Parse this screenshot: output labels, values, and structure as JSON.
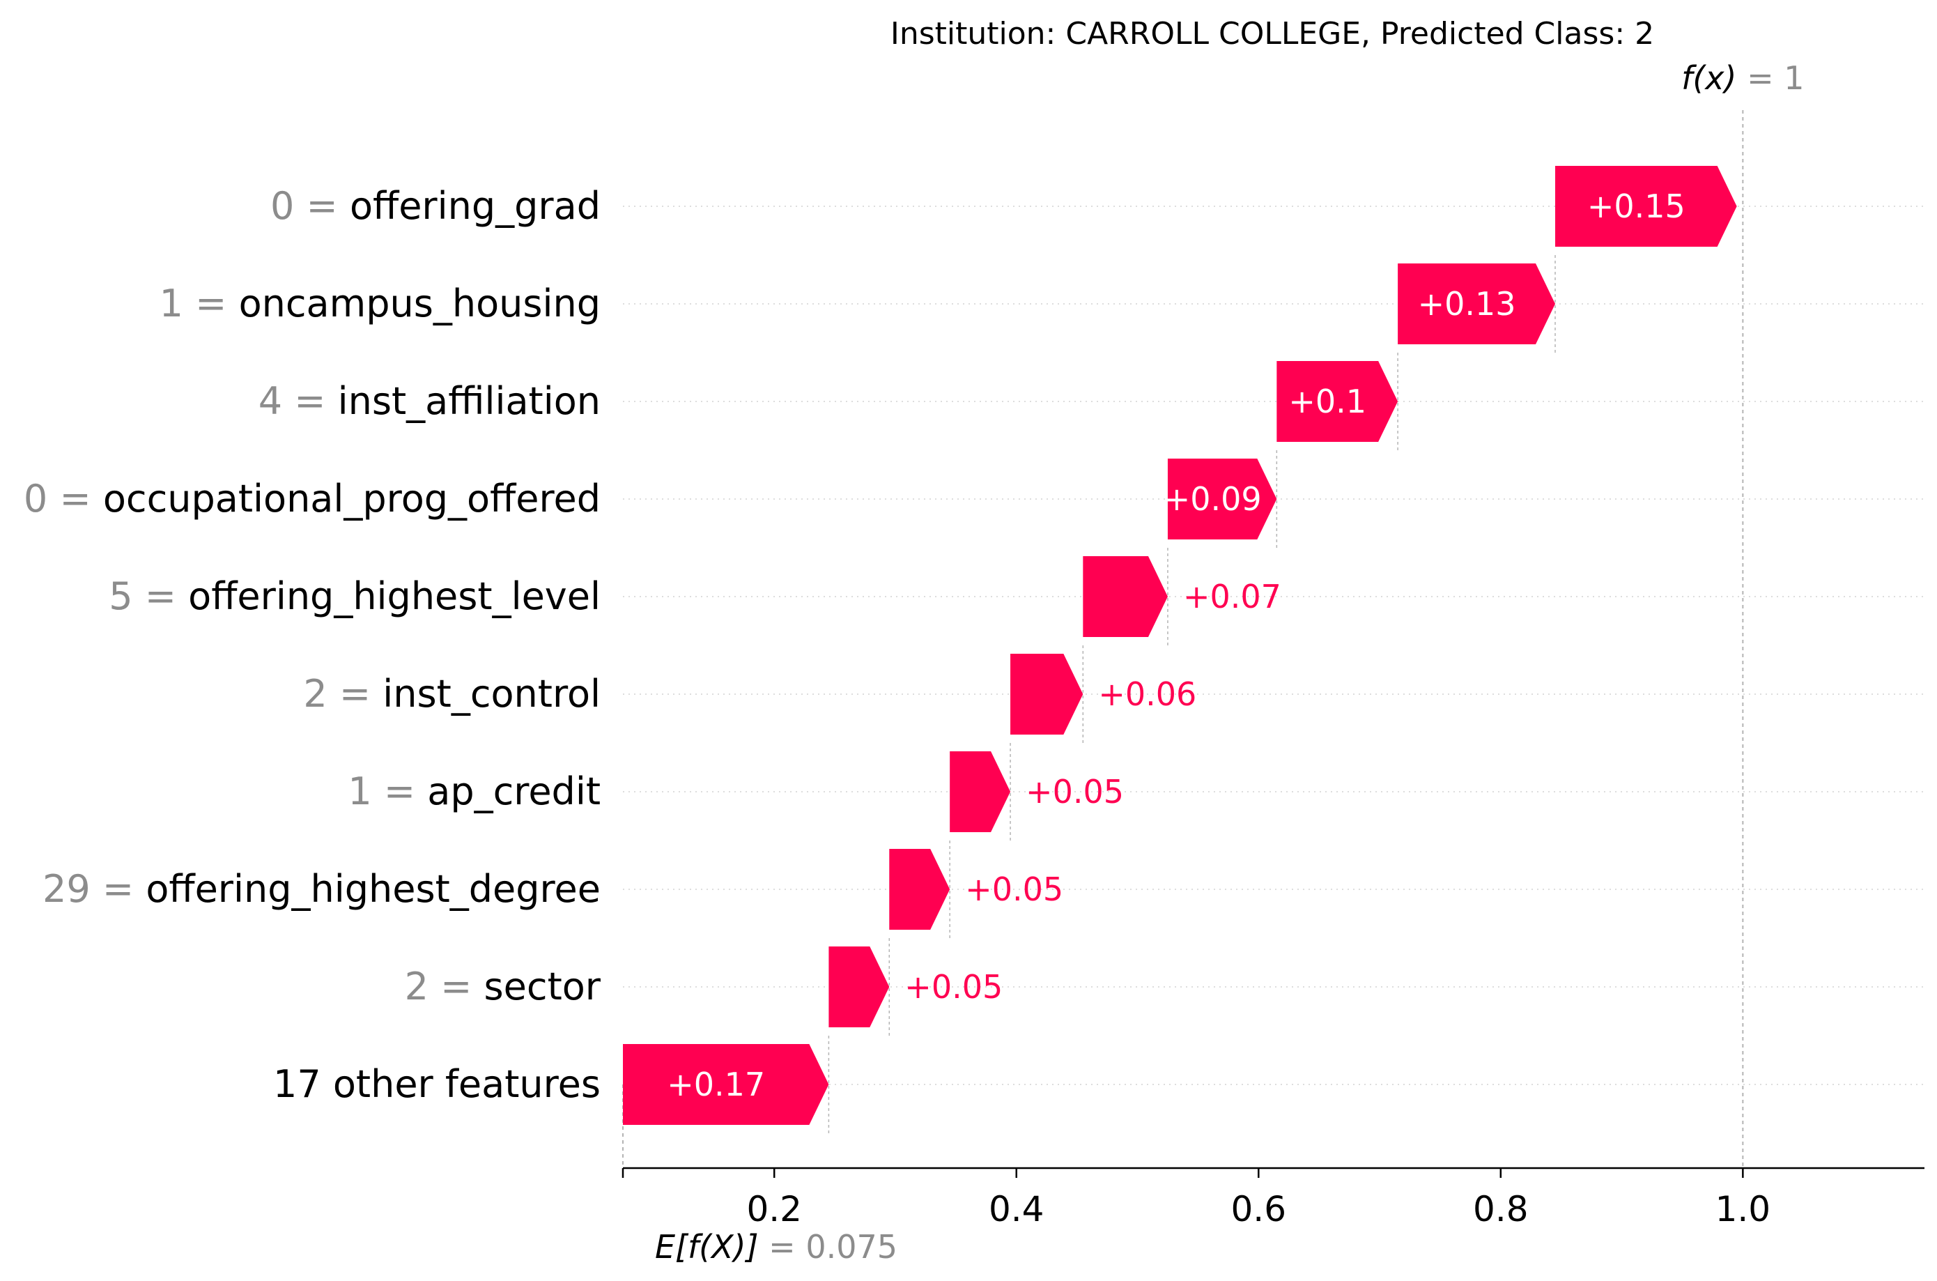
{
  "chart_data": {
    "type": "waterfall",
    "title": "Institution: CARROLL COLLEGE, Predicted Class: 2",
    "base_value": 0.075,
    "base_label": "E[f(X)]",
    "base_value_text": "= 0.075",
    "output_value": 1,
    "output_label": "f(x)",
    "output_value_text": "= 1",
    "xlim": [
      0.075,
      1.15
    ],
    "xticks": [
      0.2,
      0.4,
      0.6,
      0.8,
      1.0
    ],
    "xtick_labels": [
      "0.2",
      "0.4",
      "0.6",
      "0.8",
      "1.0"
    ],
    "positive_color": "#ff0051",
    "features": [
      {
        "value": "0",
        "name": "offering_grad",
        "contribution": 0.15,
        "label": "+0.15"
      },
      {
        "value": "1",
        "name": "oncampus_housing",
        "contribution": 0.13,
        "label": "+0.13"
      },
      {
        "value": "4",
        "name": "inst_affiliation",
        "contribution": 0.1,
        "label": "+0.1"
      },
      {
        "value": "0",
        "name": "occupational_prog_offered",
        "contribution": 0.09,
        "label": "+0.09"
      },
      {
        "value": "5",
        "name": "offering_highest_level",
        "contribution": 0.07,
        "label": "+0.07"
      },
      {
        "value": "2",
        "name": "inst_control",
        "contribution": 0.06,
        "label": "+0.06"
      },
      {
        "value": "1",
        "name": "ap_credit",
        "contribution": 0.05,
        "label": "+0.05"
      },
      {
        "value": "29",
        "name": "offering_highest_degree",
        "contribution": 0.05,
        "label": "+0.05"
      },
      {
        "value": "2",
        "name": "sector",
        "contribution": 0.05,
        "label": "+0.05"
      },
      {
        "value": "",
        "name": "17 other features",
        "contribution": 0.17,
        "label": "+0.17"
      }
    ]
  }
}
